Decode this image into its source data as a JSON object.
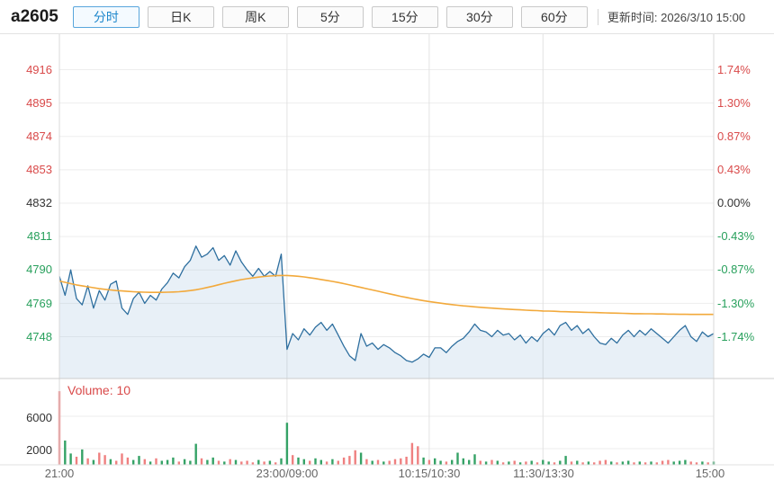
{
  "header": {
    "title": "a2605",
    "tabs": [
      {
        "label": "分时",
        "active": true
      },
      {
        "label": "日K",
        "active": false
      },
      {
        "label": "周K",
        "active": false
      },
      {
        "label": "5分",
        "active": false
      },
      {
        "label": "15分",
        "active": false
      },
      {
        "label": "30分",
        "active": false
      },
      {
        "label": "60分",
        "active": false
      }
    ],
    "update_time_label": "更新时间:",
    "update_time_value": "2026/3/10 15:00"
  },
  "chart_data": {
    "type": "line",
    "title": "a2605 intraday (分时)",
    "prev_close": 4832,
    "price_ticks": [
      4916,
      4895,
      4874,
      4853,
      4832,
      4811,
      4790,
      4769,
      4748
    ],
    "pct_ticks": [
      "1.74%",
      "1.30%",
      "0.87%",
      "0.43%",
      "0.00%",
      "-0.43%",
      "-0.87%",
      "-1.30%",
      "-1.74%"
    ],
    "ylim": [
      4722,
      4939
    ],
    "x_labels": [
      "21:00",
      "23:00/09:00",
      "10:15/10:30",
      "11:30/13:30",
      "15:00"
    ],
    "session_break_indices": [
      40,
      65,
      85
    ],
    "grid": true,
    "legend_position": "none",
    "colors": {
      "up": "#d94a4a",
      "down": "#28a05c",
      "price_line": "#2e6f9f",
      "avg_line": "#f2a93b",
      "area_fill": "rgba(148,186,218,0.22)"
    },
    "series": [
      {
        "name": "price",
        "color": "#2e6f9f",
        "values": [
          4786,
          4774,
          4790,
          4772,
          4768,
          4780,
          4766,
          4777,
          4771,
          4781,
          4783,
          4766,
          4762,
          4772,
          4776,
          4769,
          4774,
          4771,
          4778,
          4782,
          4788,
          4785,
          4792,
          4796,
          4805,
          4798,
          4800,
          4804,
          4796,
          4799,
          4793,
          4802,
          4795,
          4790,
          4786,
          4791,
          4786,
          4789,
          4786,
          4800,
          4740,
          4750,
          4746,
          4753,
          4749,
          4754,
          4757,
          4752,
          4756,
          4749,
          4742,
          4736,
          4733,
          4750,
          4742,
          4744,
          4740,
          4743,
          4741,
          4738,
          4736,
          4733,
          4732,
          4734,
          4737,
          4735,
          4741,
          4741,
          4738,
          4742,
          4745,
          4747,
          4751,
          4756,
          4752,
          4751,
          4748,
          4752,
          4749,
          4750,
          4746,
          4749,
          4744,
          4748,
          4745,
          4750,
          4753,
          4749,
          4755,
          4757,
          4752,
          4755,
          4750,
          4753,
          4748,
          4744,
          4743,
          4747,
          4744,
          4749,
          4752,
          4748,
          4752,
          4749,
          4753,
          4750,
          4747,
          4744,
          4748,
          4752,
          4755,
          4748,
          4745,
          4751,
          4748,
          4750
        ]
      },
      {
        "name": "average",
        "color": "#f2a93b",
        "values": [
          4783,
          4782.2,
          4781.4,
          4780.6,
          4780,
          4779.4,
          4778.8,
          4778.2,
          4777.8,
          4777.4,
          4777,
          4776.8,
          4776.5,
          4776.3,
          4776.1,
          4776,
          4775.9,
          4775.9,
          4775.9,
          4776,
          4776.1,
          4776.3,
          4776.6,
          4777,
          4777.5,
          4778.2,
          4779,
          4779.8,
          4780.7,
          4781.6,
          4782.4,
          4783.2,
          4783.9,
          4784.5,
          4785,
          4785.5,
          4785.9,
          4786.2,
          4786.4,
          4786.5,
          4786.5,
          4786.3,
          4786,
          4785.6,
          4785.1,
          4784.6,
          4784,
          4783.4,
          4782.8,
          4782.1,
          4781.4,
          4780.6,
          4779.8,
          4779,
          4778.2,
          4777.4,
          4776.6,
          4775.8,
          4775,
          4774.2,
          4773.4,
          4772.7,
          4772,
          4771.3,
          4770.7,
          4770.1,
          4769.6,
          4769.1,
          4768.6,
          4768.2,
          4767.8,
          4767.4,
          4767.1,
          4766.8,
          4766.5,
          4766.2,
          4766,
          4765.7,
          4765.5,
          4765.3,
          4765.1,
          4764.9,
          4764.7,
          4764.5,
          4764.4,
          4764.2,
          4764.1,
          4764,
          4763.8,
          4763.7,
          4763.6,
          4763.5,
          4763.4,
          4763.3,
          4763.2,
          4763.1,
          4763,
          4762.9,
          4762.8,
          4762.7,
          4762.6,
          4762.5,
          4762.5,
          4762.4,
          4762.4,
          4762.3,
          4762.3,
          4762.2,
          4762.2,
          4762.1,
          4762.1,
          4762,
          4762,
          4762,
          4762,
          4762
        ]
      }
    ],
    "volume": {
      "label": "Volume: 10",
      "ticks": [
        6000,
        2000
      ],
      "ylim": [
        0,
        9500
      ],
      "up_color": "#ef8080",
      "down_color": "#35a266",
      "values": [
        9100,
        3000,
        1400,
        1000,
        1900,
        800,
        600,
        1500,
        1200,
        700,
        500,
        1400,
        900,
        600,
        1100,
        700,
        400,
        800,
        500,
        600,
        900,
        400,
        700,
        500,
        2600,
        800,
        600,
        900,
        500,
        400,
        700,
        600,
        400,
        500,
        300,
        600,
        400,
        500,
        300,
        800,
        5200,
        1200,
        900,
        700,
        500,
        800,
        600,
        400,
        700,
        500,
        900,
        1100,
        1800,
        1500,
        700,
        500,
        600,
        400,
        500,
        700,
        800,
        1000,
        2700,
        2300,
        900,
        600,
        800,
        500,
        400,
        600,
        1500,
        800,
        600,
        1300,
        500,
        400,
        600,
        500,
        300,
        400,
        500,
        300,
        400,
        500,
        300,
        600,
        400,
        300,
        500,
        1100,
        400,
        500,
        300,
        400,
        300,
        500,
        600,
        400,
        300,
        400,
        500,
        300,
        400,
        300,
        400,
        300,
        500,
        600,
        400,
        500,
        600,
        400,
        300,
        400,
        300,
        400
      ],
      "colors": "rggrgrgrrgrrrggrgrgggrgggrggrgrgrrrgrgrggrggrggrgrrrrgrgrgrrrrrrgrggrgggggrgrgrgrgrgrggrggrgrgrrrgrggrgrgrrrgggrrgrg"
    }
  }
}
